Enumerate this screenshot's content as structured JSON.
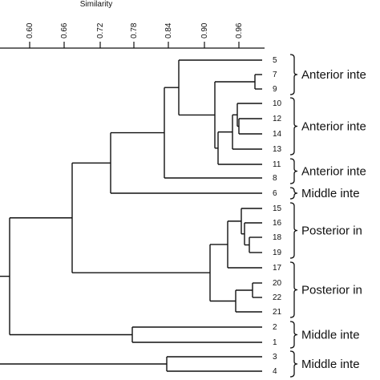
{
  "chart_data": {
    "type": "dendrogram",
    "axis_title": "Similarity",
    "axis_ticks": [
      "0.60",
      "0.66",
      "0.72",
      "0.78",
      "0.84",
      "0.90",
      "0.96"
    ],
    "leaves": [
      "5",
      "7",
      "9",
      "10",
      "12",
      "14",
      "13",
      "11",
      "8",
      "6",
      "15",
      "16",
      "18",
      "19",
      "17",
      "20",
      "22",
      "21",
      "2",
      "1",
      "3",
      "4"
    ],
    "groups": [
      {
        "label": "Anterior inte",
        "first_leaf": "5",
        "last_leaf": "9"
      },
      {
        "label": "Anterior inte",
        "first_leaf": "10",
        "last_leaf": "13"
      },
      {
        "label": "Anterior inte",
        "first_leaf": "11",
        "last_leaf": "8"
      },
      {
        "label": "Middle inte",
        "first_leaf": "6",
        "last_leaf": "6"
      },
      {
        "label": "Posterior in",
        "first_leaf": "15",
        "last_leaf": "19"
      },
      {
        "label": "Posterior in",
        "first_leaf": "17",
        "last_leaf": "21"
      },
      {
        "label": "Middle inte",
        "first_leaf": "2",
        "last_leaf": "1"
      },
      {
        "label": "Middle inte",
        "first_leaf": "3",
        "last_leaf": "4"
      }
    ]
  }
}
